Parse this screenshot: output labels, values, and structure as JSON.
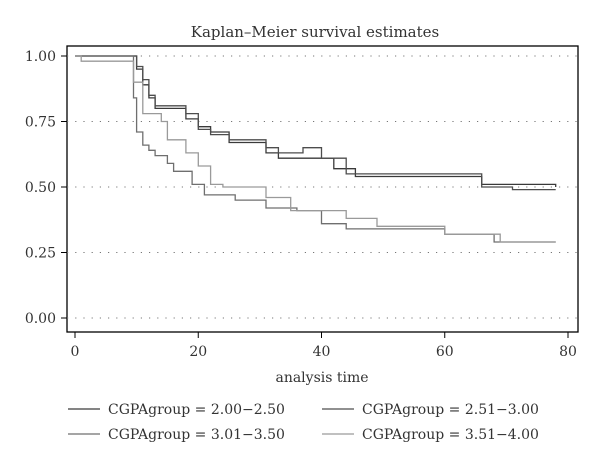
{
  "chart_data": {
    "type": "line",
    "step": true,
    "title": "Kaplan–Meier survival estimates",
    "xlabel": "analysis time",
    "ylabel": "",
    "xlim": [
      0,
      80
    ],
    "ylim": [
      0,
      1
    ],
    "x_ticks": [
      "0",
      "20",
      "40",
      "60",
      "80"
    ],
    "y_ticks": [
      "0.00",
      "0.25",
      "0.50",
      "0.75",
      "1.00"
    ],
    "grid": "dotted-horizontal",
    "legend_position": "bottom",
    "series": [
      {
        "name": "CGPAgroup = 2.00−2.50",
        "color": "#3a3a3a",
        "points": [
          [
            0,
            1.0
          ],
          [
            9.5,
            1.0
          ],
          [
            10,
            0.95
          ],
          [
            11,
            0.89
          ],
          [
            12,
            0.84
          ],
          [
            13,
            0.8
          ],
          [
            18,
            0.76
          ],
          [
            20,
            0.73
          ],
          [
            22,
            0.71
          ],
          [
            25,
            0.67
          ],
          [
            31,
            0.63
          ],
          [
            33,
            0.61
          ],
          [
            37,
            0.61
          ],
          [
            40,
            0.61
          ],
          [
            42,
            0.57
          ],
          [
            45,
            0.57
          ],
          [
            45.5,
            0.54
          ],
          [
            65,
            0.54
          ],
          [
            66,
            0.51
          ],
          [
            71,
            0.51
          ],
          [
            78,
            0.5
          ]
        ]
      },
      {
        "name": "CGPAgroup = 2.51−3.00",
        "color": "#4d4d4d",
        "points": [
          [
            0,
            1.0
          ],
          [
            9.5,
            1.0
          ],
          [
            10,
            0.96
          ],
          [
            11,
            0.91
          ],
          [
            12,
            0.85
          ],
          [
            13,
            0.81
          ],
          [
            18,
            0.78
          ],
          [
            20,
            0.72
          ],
          [
            22,
            0.7
          ],
          [
            25,
            0.68
          ],
          [
            31,
            0.65
          ],
          [
            33,
            0.63
          ],
          [
            37,
            0.65
          ],
          [
            40,
            0.61
          ],
          [
            44,
            0.55
          ],
          [
            66,
            0.5
          ],
          [
            71,
            0.49
          ],
          [
            78,
            0.49
          ]
        ]
      },
      {
        "name": "CGPAgroup = 3.01−3.50",
        "color": "#6f6f6f",
        "points": [
          [
            0,
            1.0
          ],
          [
            9,
            1.0
          ],
          [
            9.5,
            0.84
          ],
          [
            10,
            0.71
          ],
          [
            11,
            0.66
          ],
          [
            12,
            0.64
          ],
          [
            13,
            0.62
          ],
          [
            15,
            0.59
          ],
          [
            16,
            0.56
          ],
          [
            19,
            0.51
          ],
          [
            21,
            0.47
          ],
          [
            26,
            0.45
          ],
          [
            31,
            0.42
          ],
          [
            36,
            0.41
          ],
          [
            40,
            0.36
          ],
          [
            44,
            0.34
          ],
          [
            58,
            0.34
          ],
          [
            60,
            0.32
          ],
          [
            67,
            0.32
          ],
          [
            68,
            0.29
          ],
          [
            78,
            0.29
          ]
        ]
      },
      {
        "name": "CGPAgroup = 3.51−4.00",
        "color": "#9a9a9a",
        "points": [
          [
            0,
            1.0
          ],
          [
            1,
            0.98
          ],
          [
            9,
            0.98
          ],
          [
            9.5,
            0.9
          ],
          [
            11,
            0.78
          ],
          [
            14,
            0.75
          ],
          [
            15,
            0.68
          ],
          [
            18,
            0.63
          ],
          [
            20,
            0.58
          ],
          [
            22,
            0.51
          ],
          [
            24,
            0.5
          ],
          [
            31,
            0.46
          ],
          [
            35,
            0.41
          ],
          [
            44,
            0.38
          ],
          [
            49,
            0.35
          ],
          [
            60,
            0.32
          ],
          [
            67,
            0.32
          ],
          [
            69,
            0.29
          ],
          [
            78,
            0.29
          ]
        ]
      }
    ]
  }
}
